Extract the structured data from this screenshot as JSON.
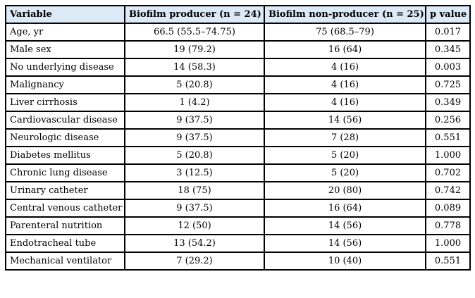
{
  "table": {
    "headers": [
      "Variable",
      "Biofilm producer (n = 24)",
      "Biofilm non-producer (n = 25)",
      "p value"
    ],
    "rows": [
      [
        "Age, yr",
        "66.5 (55.5–74.75)",
        "75 (68.5–79)",
        "0.017"
      ],
      [
        "Male sex",
        "19 (79.2)",
        "16 (64)",
        "0.345"
      ],
      [
        "No underlying disease",
        "14 (58.3)",
        "4 (16)",
        "0.003"
      ],
      [
        "Malignancy",
        "5 (20.8)",
        "4 (16)",
        "0.725"
      ],
      [
        "Liver cirrhosis",
        "1 (4.2)",
        "4 (16)",
        "0.349"
      ],
      [
        "Cardiovascular disease",
        "9 (37.5)",
        "14 (56)",
        "0.256"
      ],
      [
        "Neurologic disease",
        "9 (37.5)",
        "7 (28)",
        "0.551"
      ],
      [
        "Diabetes mellitus",
        "5 (20.8)",
        "5 (20)",
        "1.000"
      ],
      [
        "Chronic lung disease",
        "3 (12.5)",
        "5 (20)",
        "0.702"
      ],
      [
        "Urinary catheter",
        "18 (75)",
        "20 (80)",
        "0.742"
      ],
      [
        "Central venous catheter",
        "9 (37.5)",
        "16 (64)",
        "0.089"
      ],
      [
        "Parenteral nutrition",
        "12 (50)",
        "14 (56)",
        "0.778"
      ],
      [
        "Endotracheal tube",
        "13 (54.2)",
        "14 (56)",
        "1.000"
      ],
      [
        "Mechanical ventilator",
        "7 (29.2)",
        "10 (40)",
        "0.551"
      ]
    ]
  },
  "colors": {
    "header_background": "#dce9f7",
    "border": "#000000"
  }
}
